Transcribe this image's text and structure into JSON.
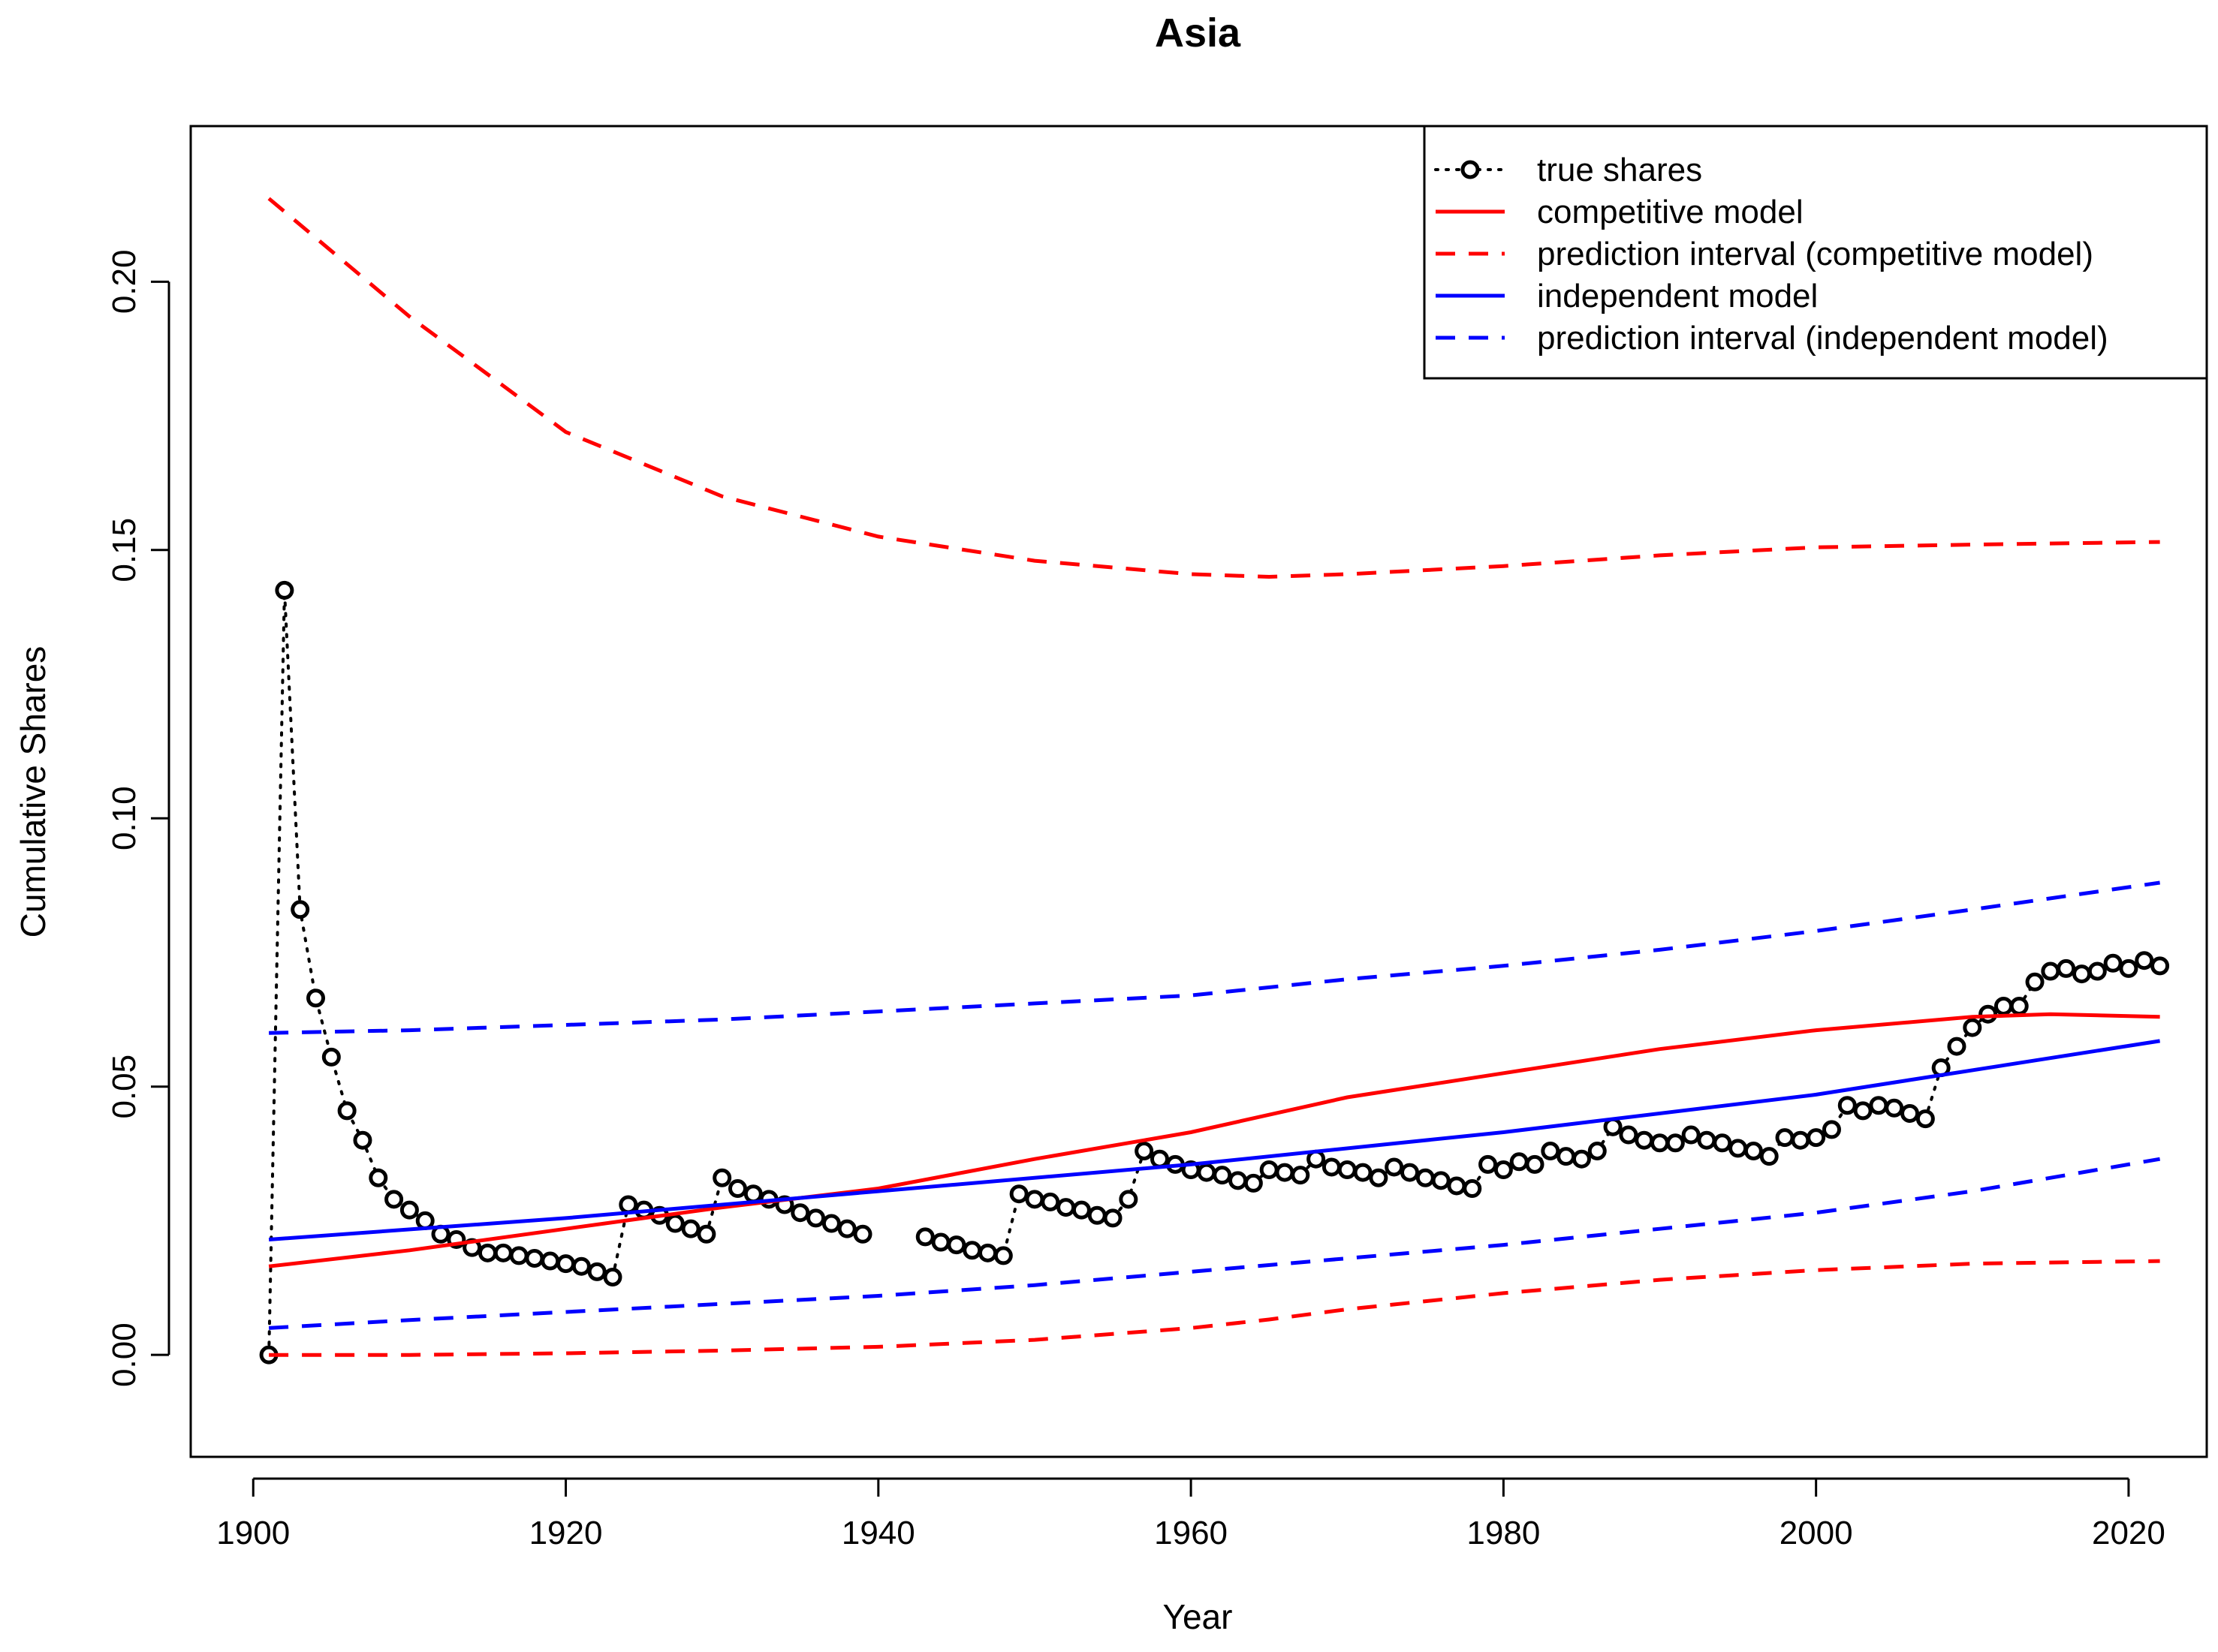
{
  "chart_data": {
    "type": "line",
    "title": "Asia",
    "xlabel": "Year",
    "ylabel": "Cumulative Shares",
    "xlim": [
      1896,
      2025
    ],
    "ylim": [
      -0.019,
      0.229
    ],
    "x_ticks": [
      1900,
      1920,
      1940,
      1960,
      1980,
      2000,
      2020
    ],
    "x_tick_labels": [
      "1900",
      "1920",
      "1940",
      "1960",
      "1980",
      "2000",
      "2020"
    ],
    "y_ticks": [
      0.0,
      0.05,
      0.1,
      0.15,
      0.2
    ],
    "y_tick_labels": [
      "0.00",
      "0.05",
      "0.10",
      "0.15",
      "0.20"
    ],
    "grid": false,
    "legend_position": "top-right",
    "series": [
      {
        "name": "true shares",
        "style": "points-dotted",
        "color": "#000000",
        "x": [
          1901,
          1902,
          1903,
          1904,
          1905,
          1906,
          1907,
          1908,
          1909,
          1910,
          1911,
          1912,
          1913,
          1914,
          1915,
          1916,
          1917,
          1918,
          1919,
          1920,
          1921,
          1922,
          1923,
          1924,
          1925,
          1926,
          1927,
          1928,
          1929,
          1930,
          1931,
          1932,
          1933,
          1934,
          1935,
          1936,
          1937,
          1938,
          1939,
          1943,
          1944,
          1945,
          1946,
          1947,
          1948,
          1949,
          1950,
          1951,
          1952,
          1953,
          1954,
          1955,
          1956,
          1957,
          1958,
          1959,
          1960,
          1961,
          1962,
          1963,
          1964,
          1965,
          1966,
          1967,
          1968,
          1969,
          1970,
          1971,
          1972,
          1973,
          1974,
          1975,
          1976,
          1977,
          1978,
          1979,
          1980,
          1981,
          1982,
          1983,
          1984,
          1985,
          1986,
          1987,
          1988,
          1989,
          1990,
          1991,
          1992,
          1993,
          1994,
          1995,
          1996,
          1997,
          1998,
          1999,
          2000,
          2001,
          2002,
          2003,
          2004,
          2005,
          2006,
          2007,
          2008,
          2009,
          2010,
          2011,
          2012,
          2013,
          2014,
          2015,
          2016,
          2017,
          2018,
          2019,
          2020,
          2021,
          2022
        ],
        "values": [
          0.0,
          0.1425,
          0.083,
          0.0665,
          0.0555,
          0.0455,
          0.04,
          0.033,
          0.029,
          0.027,
          0.025,
          0.0225,
          0.0215,
          0.02,
          0.019,
          0.019,
          0.0185,
          0.018,
          0.0175,
          0.017,
          0.0165,
          0.0155,
          0.0145,
          0.028,
          0.027,
          0.026,
          0.0245,
          0.0235,
          0.0225,
          0.033,
          0.031,
          0.03,
          0.029,
          0.028,
          0.0265,
          0.0255,
          0.0245,
          0.0235,
          0.0225,
          0.022,
          0.021,
          0.0205,
          0.0195,
          0.019,
          0.0185,
          0.03,
          0.029,
          0.0285,
          0.0275,
          0.027,
          0.026,
          0.0255,
          0.029,
          0.038,
          0.0365,
          0.0355,
          0.0345,
          0.034,
          0.0335,
          0.0325,
          0.032,
          0.0345,
          0.034,
          0.0335,
          0.0365,
          0.035,
          0.0345,
          0.034,
          0.033,
          0.035,
          0.034,
          0.033,
          0.0325,
          0.0315,
          0.031,
          0.0355,
          0.0345,
          0.036,
          0.0355,
          0.038,
          0.037,
          0.0365,
          0.038,
          0.0425,
          0.041,
          0.04,
          0.0395,
          0.0395,
          0.041,
          0.04,
          0.0395,
          0.0385,
          0.038,
          0.037,
          0.0405,
          0.04,
          0.0405,
          0.042,
          0.0465,
          0.0455,
          0.0465,
          0.046,
          0.045,
          0.044,
          0.0535,
          0.0575,
          0.061,
          0.0635,
          0.065,
          0.065,
          0.0695,
          0.0715,
          0.072,
          0.071,
          0.0715,
          0.073,
          0.072,
          0.0735,
          0.0725
        ]
      },
      {
        "name": "competitive model",
        "style": "solid",
        "color": "#ff0000",
        "x": [
          1901,
          1910,
          1920,
          1930,
          1940,
          1950,
          1960,
          1970,
          1980,
          1990,
          2000,
          2010,
          2015,
          2022
        ],
        "values": [
          0.0165,
          0.0195,
          0.0235,
          0.0275,
          0.031,
          0.0365,
          0.0415,
          0.048,
          0.0525,
          0.057,
          0.0605,
          0.063,
          0.0635,
          0.063
        ]
      },
      {
        "name": "prediction interval (competitive model)",
        "style": "dashed",
        "color": "#ff0000",
        "x": [
          1901,
          1910,
          1920,
          1930,
          1940,
          1950,
          1960,
          1965,
          1970,
          1980,
          1990,
          2000,
          2010,
          2022
        ],
        "values": [
          0.2155,
          0.1935,
          0.172,
          0.16,
          0.1525,
          0.148,
          0.1455,
          0.145,
          0.1455,
          0.147,
          0.149,
          0.1505,
          0.151,
          0.1515
        ],
        "lower_values": [
          0.0,
          0.0,
          0.0003,
          0.0008,
          0.0015,
          0.0028,
          0.005,
          0.0066,
          0.0085,
          0.0115,
          0.014,
          0.0158,
          0.017,
          0.0175
        ]
      },
      {
        "name": "independent model",
        "style": "solid",
        "color": "#0000ff",
        "x": [
          1901,
          1920,
          1940,
          1960,
          1980,
          2000,
          2022
        ],
        "values": [
          0.0215,
          0.0255,
          0.0305,
          0.0355,
          0.0415,
          0.0485,
          0.0585
        ]
      },
      {
        "name": "prediction interval (independent model)",
        "style": "dashed",
        "color": "#0000ff",
        "x": [
          1901,
          1910,
          1920,
          1930,
          1940,
          1950,
          1960,
          1970,
          1980,
          1990,
          2000,
          2010,
          2022
        ],
        "values": [
          0.06,
          0.0605,
          0.0615,
          0.0625,
          0.064,
          0.0655,
          0.067,
          0.07,
          0.0725,
          0.0755,
          0.079,
          0.083,
          0.088
        ],
        "lower_values": [
          0.005,
          0.0065,
          0.008,
          0.0095,
          0.011,
          0.013,
          0.0155,
          0.018,
          0.0205,
          0.0235,
          0.0265,
          0.0305,
          0.0365
        ]
      }
    ]
  }
}
